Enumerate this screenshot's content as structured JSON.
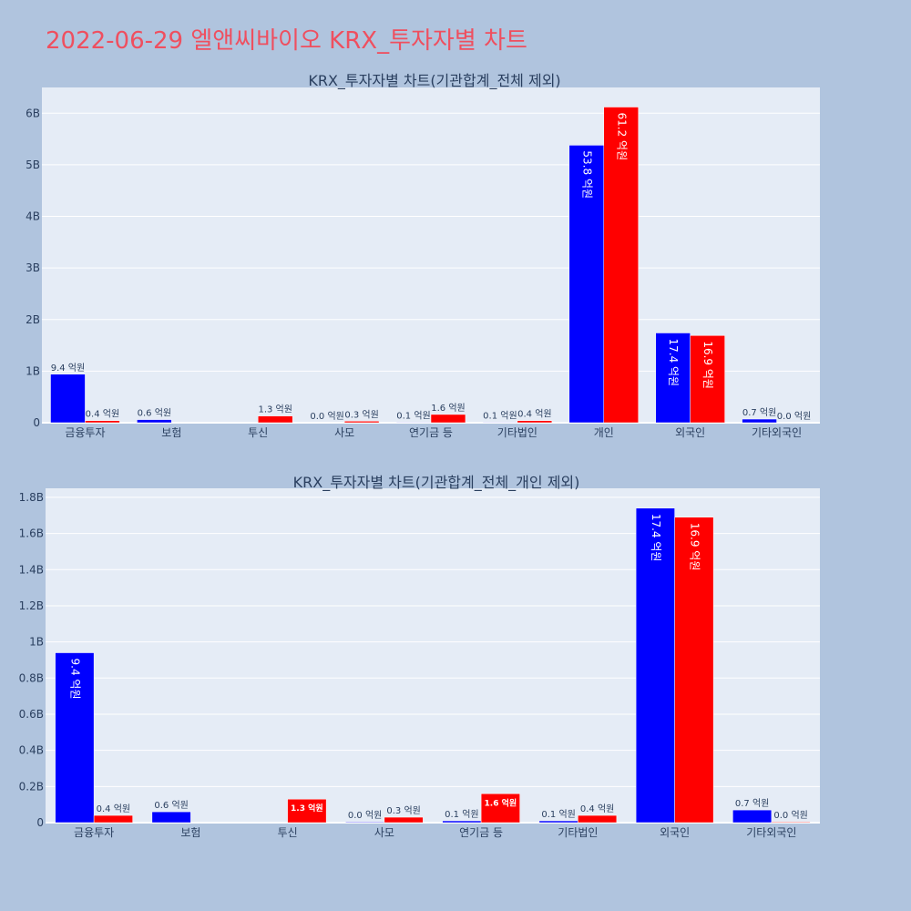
{
  "page": {
    "title": "2022-06-29 엘앤씨바이오 KRX_투자자별 차트"
  },
  "colors": {
    "background": "#b0c4de",
    "plot_bg": "#e5ecf6",
    "buy": "#0000ff",
    "sell": "#ff0000",
    "title": "#ef4f5f",
    "text": "#2a3f5f"
  },
  "chart_data": [
    {
      "type": "bar",
      "title": "KRX_투자자별 차트(기관합계_전체 제외)",
      "categories": [
        "금융투자",
        "보험",
        "투신",
        "사모",
        "연기금 등",
        "기타법인",
        "개인",
        "외국인",
        "기타외국인"
      ],
      "series": [
        {
          "color": "#0000ff",
          "values": [
            0.94,
            0.06,
            0.0,
            0.004,
            0.01,
            0.01,
            5.38,
            1.74,
            0.07
          ],
          "labels": [
            "9.4 억원",
            "0.6 억원",
            "",
            "0.0 억원",
            "0.1 억원",
            "0.1 억원",
            "53.8 억원",
            "17.4 억원",
            "0.7 억원"
          ]
        },
        {
          "color": "#ff0000",
          "values": [
            0.04,
            0.0,
            0.13,
            0.03,
            0.16,
            0.04,
            6.12,
            1.69,
            0.004
          ],
          "labels": [
            "0.4 억원",
            "",
            "1.3 억원",
            "0.3 억원",
            "1.6 억원",
            "0.4 억원",
            "61.2 억원",
            "16.9 억원",
            "0.0 억원"
          ]
        }
      ],
      "ylim": [
        0,
        6.5
      ],
      "yticks": [
        0,
        1,
        2,
        3,
        4,
        5,
        6
      ],
      "yticklabels": [
        "0",
        "1B",
        "2B",
        "3B",
        "4B",
        "5B",
        "6B"
      ],
      "grid": true
    },
    {
      "type": "bar",
      "title": "KRX_투자자별 차트(기관합계_전체_개인 제외)",
      "categories": [
        "금융투자",
        "보험",
        "투신",
        "사모",
        "연기금 등",
        "기타법인",
        "외국인",
        "기타외국인"
      ],
      "series": [
        {
          "color": "#0000ff",
          "values": [
            0.94,
            0.06,
            0.0,
            0.004,
            0.01,
            0.01,
            1.74,
            0.07
          ],
          "labels": [
            "9.4 억원",
            "0.6 억원",
            "",
            "0.0 억원",
            "0.1 억원",
            "0.1 억원",
            "17.4 억원",
            "0.7 억원"
          ]
        },
        {
          "color": "#ff0000",
          "values": [
            0.04,
            0.0,
            0.13,
            0.03,
            0.16,
            0.04,
            1.69,
            0.004
          ],
          "labels": [
            "0.4 억원",
            "",
            "1.3 억원",
            "0.3 억원",
            "1.6 억원",
            "0.4 억원",
            "16.9 억원",
            "0.0 억원"
          ]
        }
      ],
      "ylim": [
        0,
        1.85
      ],
      "yticks": [
        0,
        0.2,
        0.4,
        0.6,
        0.8,
        1.0,
        1.2,
        1.4,
        1.6,
        1.8
      ],
      "yticklabels": [
        "0",
        "0.2B",
        "0.4B",
        "0.6B",
        "0.8B",
        "1B",
        "1.2B",
        "1.4B",
        "1.6B",
        "1.8B"
      ],
      "grid": true
    }
  ]
}
